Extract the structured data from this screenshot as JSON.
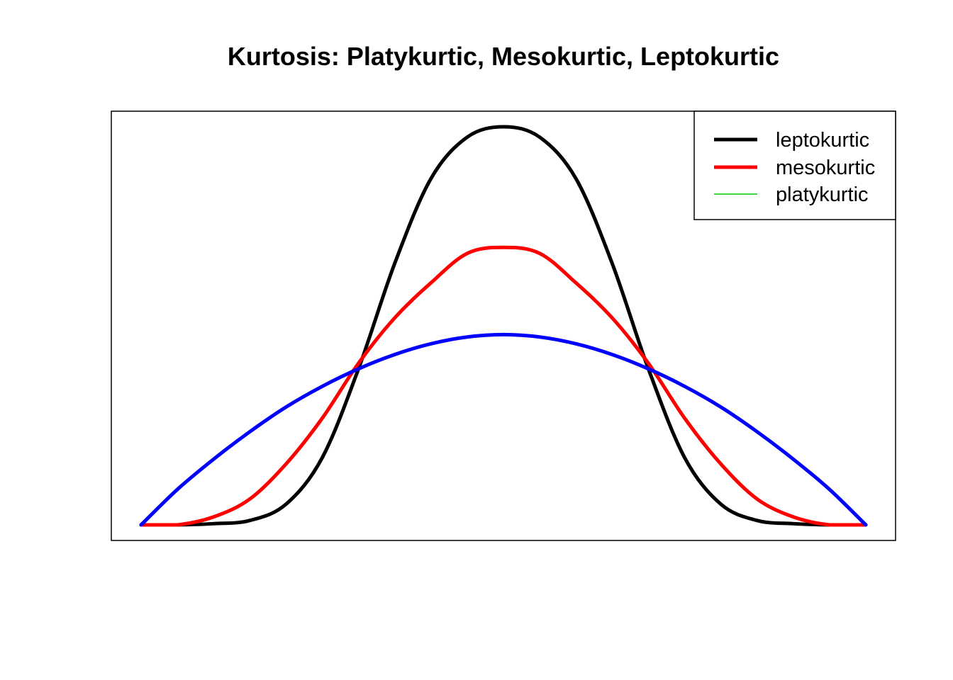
{
  "chart_data": {
    "type": "line",
    "title": "Kurtosis: Platykurtic, Mesokurtic, Leptokurtic",
    "xlabel": "",
    "ylabel": "",
    "axes_visible": false,
    "grid": false,
    "legend_position": "top-right",
    "x_range": [
      -1,
      1
    ],
    "y_range": [
      0,
      1
    ],
    "series": [
      {
        "name": "leptokurtic",
        "color": "#000000",
        "legend_color": "#000000",
        "x": [
          -1.0,
          -0.9,
          -0.8,
          -0.7,
          -0.6,
          -0.5,
          -0.4,
          -0.3,
          -0.2,
          -0.1,
          0.0,
          0.1,
          0.2,
          0.3,
          0.4,
          0.5,
          0.6,
          0.7,
          0.8,
          0.9,
          1.0
        ],
        "y": [
          0.0,
          0.0,
          0.003,
          0.011,
          0.052,
          0.169,
          0.392,
          0.657,
          0.87,
          0.974,
          1.0,
          0.974,
          0.87,
          0.657,
          0.392,
          0.169,
          0.052,
          0.011,
          0.003,
          0.0,
          0.0
        ]
      },
      {
        "name": "mesokurtic",
        "color": "#ff0000",
        "legend_color": "#ff0000",
        "x": [
          -1.0,
          -0.9,
          -0.8,
          -0.7,
          -0.6,
          -0.5,
          -0.4,
          -0.3,
          -0.2,
          -0.1,
          0.0,
          0.1,
          0.2,
          0.3,
          0.4,
          0.5,
          0.6,
          0.7,
          0.8,
          0.9,
          1.0
        ],
        "y": [
          0.0,
          0.0,
          0.02,
          0.065,
          0.153,
          0.268,
          0.406,
          0.52,
          0.608,
          0.682,
          0.697,
          0.682,
          0.608,
          0.52,
          0.406,
          0.268,
          0.153,
          0.065,
          0.02,
          0.0,
          0.0
        ]
      },
      {
        "name": "platykurtic",
        "color": "#0000ff",
        "legend_color": "#00cc00",
        "x": [
          -1.0,
          -0.9,
          -0.8,
          -0.7,
          -0.6,
          -0.5,
          -0.4,
          -0.3,
          -0.2,
          -0.1,
          0.0,
          0.1,
          0.2,
          0.3,
          0.4,
          0.5,
          0.6,
          0.7,
          0.8,
          0.9,
          1.0
        ],
        "y": [
          0.0,
          0.089,
          0.165,
          0.234,
          0.296,
          0.348,
          0.392,
          0.428,
          0.455,
          0.472,
          0.478,
          0.472,
          0.455,
          0.428,
          0.392,
          0.348,
          0.296,
          0.234,
          0.165,
          0.089,
          0.0
        ]
      }
    ]
  }
}
